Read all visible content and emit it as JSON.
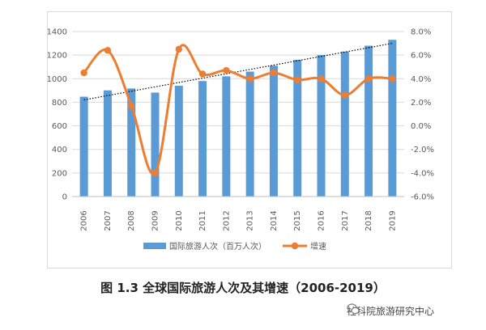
{
  "chart_data": {
    "type": "bar+line",
    "categories": [
      "2006",
      "2007",
      "2008",
      "2009",
      "2010",
      "2011",
      "2012",
      "2013",
      "2014",
      "2015",
      "2016",
      "2017",
      "2018",
      "2019"
    ],
    "series": [
      {
        "name": "国际旅游人次（百万人次）",
        "type": "bar",
        "axis": "left",
        "color": "#5b9bd5",
        "values": [
          847,
          901,
          917,
          882,
          940,
          980,
          1020,
          1060,
          1110,
          1160,
          1200,
          1230,
          1280,
          1330
        ]
      },
      {
        "name": "增速",
        "type": "line",
        "axis": "right",
        "color": "#ed7d31",
        "values": [
          4.5,
          6.4,
          1.7,
          -4.0,
          6.5,
          4.4,
          4.7,
          4.0,
          4.5,
          3.9,
          4.0,
          2.6,
          4.0,
          4.0
        ]
      }
    ],
    "trendline": {
      "of": "国际旅游人次（百万人次）",
      "style": "dotted",
      "color": "#000000",
      "start": 820,
      "end": 1300
    },
    "left_axis": {
      "ylim": [
        0,
        1400
      ],
      "ticks": [
        "0",
        "200",
        "400",
        "600",
        "800",
        "1000",
        "1200",
        "1400"
      ]
    },
    "right_axis": {
      "ylim": [
        -6.0,
        8.0
      ],
      "ticks": [
        "-6.0%",
        "-4.0%",
        "-2.0%",
        "0.0%",
        "2.0%",
        "4.0%",
        "6.0%",
        "8.0%"
      ]
    },
    "grid": true,
    "legend_placement": "bottom"
  },
  "caption": "图 1.3 全球国际旅游人次及其增速（2006-2019）",
  "watermark": "社科院旅游研究中心"
}
